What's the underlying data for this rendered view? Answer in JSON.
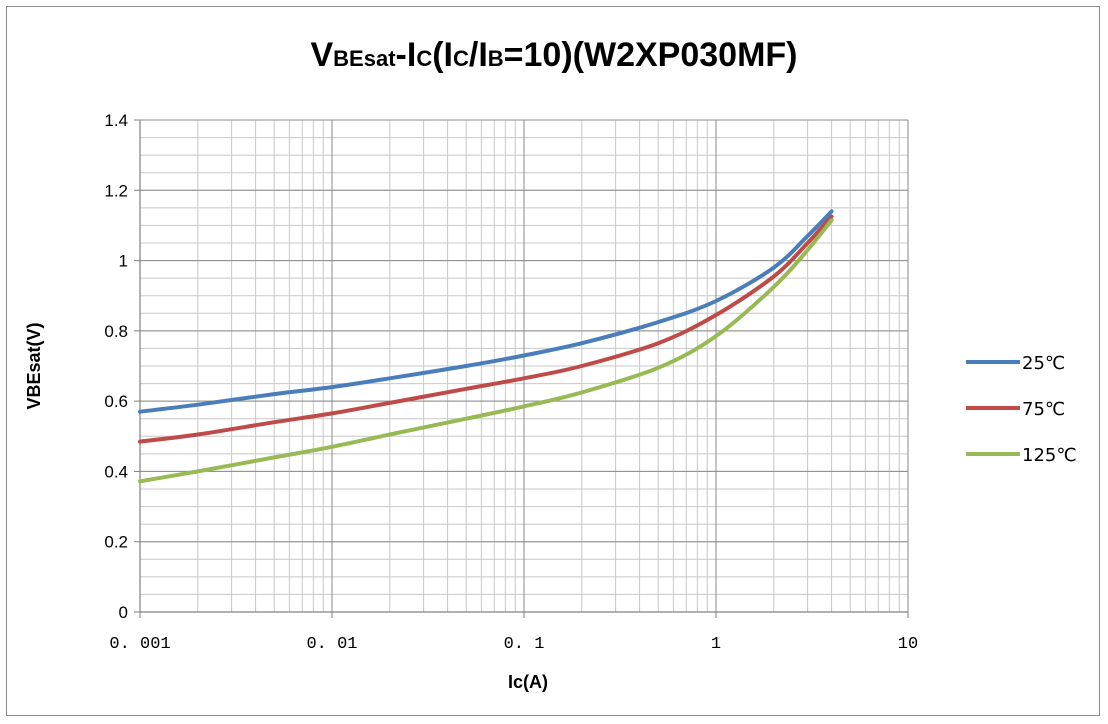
{
  "chart_data": {
    "type": "line",
    "title_parts": {
      "t1": "V",
      "t2": "BEsat",
      "t3": "-I",
      "t4": "C",
      "t5": "(I",
      "t6": "C",
      "t7": "/I",
      "t8": "B",
      "t9": "=10)(W2XP030MF)"
    },
    "xlabel": "Ic(A)",
    "ylabel": "VBEsat(V)",
    "x_scale": "log",
    "xlim": [
      0.001,
      10
    ],
    "ylim": [
      0,
      1.4
    ],
    "x_ticks": [
      0.001,
      0.01,
      0.1,
      1,
      10
    ],
    "x_tick_labels": [
      "0. 001",
      "0. 01",
      "0. 1",
      "1",
      "10"
    ],
    "y_ticks": [
      0,
      0.2,
      0.4,
      0.6,
      0.8,
      1,
      1.2,
      1.4
    ],
    "y_tick_labels": [
      "0",
      "0.2",
      "0.4",
      "0.6",
      "0.8",
      "1",
      "1.2",
      "1.4"
    ],
    "grid": true,
    "legend_position": "right",
    "series": [
      {
        "name": "25℃",
        "color": "#4a7ebb",
        "x": [
          0.001,
          0.002,
          0.005,
          0.01,
          0.02,
          0.05,
          0.1,
          0.2,
          0.5,
          1,
          2,
          3,
          4
        ],
        "y": [
          0.57,
          0.59,
          0.62,
          0.64,
          0.665,
          0.7,
          0.73,
          0.765,
          0.825,
          0.885,
          0.98,
          1.07,
          1.14
        ]
      },
      {
        "name": "75℃",
        "color": "#be4b48",
        "x": [
          0.001,
          0.002,
          0.005,
          0.01,
          0.02,
          0.05,
          0.1,
          0.2,
          0.5,
          1,
          2,
          3,
          4
        ],
        "y": [
          0.485,
          0.505,
          0.54,
          0.565,
          0.595,
          0.635,
          0.665,
          0.7,
          0.765,
          0.845,
          0.955,
          1.05,
          1.125
        ]
      },
      {
        "name": "125℃",
        "color": "#98b954",
        "x": [
          0.001,
          0.002,
          0.005,
          0.01,
          0.02,
          0.05,
          0.1,
          0.2,
          0.5,
          1,
          2,
          3,
          4
        ],
        "y": [
          0.372,
          0.4,
          0.44,
          0.47,
          0.505,
          0.55,
          0.585,
          0.625,
          0.695,
          0.785,
          0.925,
          1.03,
          1.115
        ]
      }
    ]
  }
}
